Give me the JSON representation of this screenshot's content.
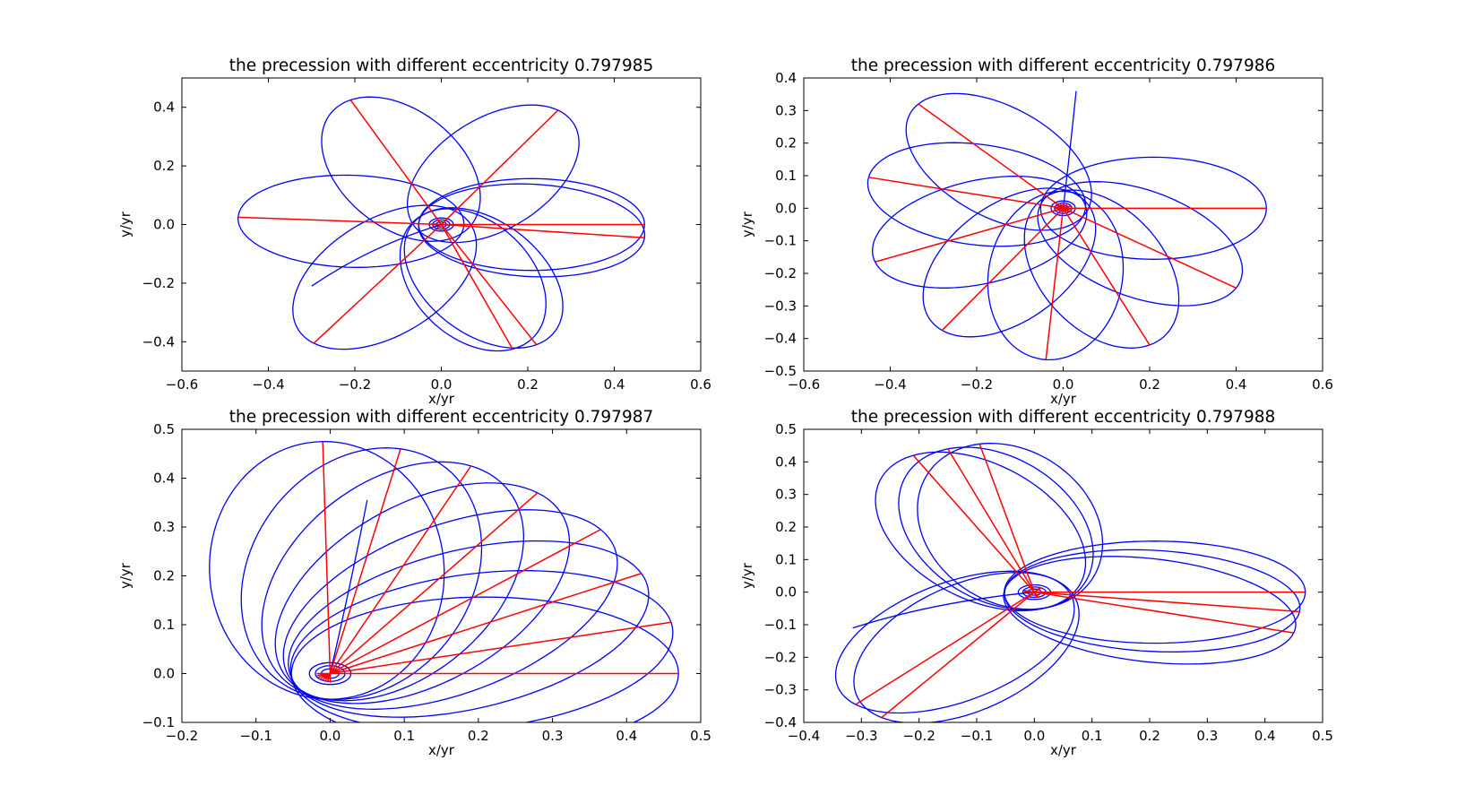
{
  "figure": {
    "background": "#ffffff"
  },
  "chart_data": [
    {
      "type": "line",
      "title": "the precession with different eccentricity 0.797985",
      "xlabel": "x/yr",
      "ylabel": "y/yr",
      "xlim": [
        -0.6,
        0.6
      ],
      "ylim": [
        -0.5,
        0.5
      ],
      "xticks": [
        -0.6,
        -0.4,
        -0.2,
        0.0,
        0.2,
        0.4,
        0.6
      ],
      "xtick_labels": [
        "−0.6",
        "−0.4",
        "−0.2",
        "0.0",
        "0.2",
        "0.4",
        "0.6"
      ],
      "yticks": [
        0.4,
        0.2,
        0.0,
        -0.2,
        -0.4
      ],
      "ytick_labels": [
        "0.4",
        "0.2",
        "0.0",
        "−0.2",
        "−0.4"
      ],
      "grid": false,
      "series": [
        {
          "kind": "orbit",
          "color": "#0000ff",
          "eccentricity": 0.797985,
          "perihelion_radius": 0.0,
          "aphelion_radius": 0.47,
          "apsis_angles_deg": [
            0,
            -5.5,
            -67.2,
            -139.2,
            176.2,
            123.5,
            55.6,
            -113.6
          ],
          "end_point": [
            -0.3,
            -0.21
          ]
        },
        {
          "kind": "major-axis-lines",
          "color": "#ff0000",
          "points": [
            [
              0.47,
              0.0
            ],
            [
              0.47,
              -0.045
            ],
            [
              0.165,
              -0.425
            ],
            [
              0.22,
              -0.41
            ],
            [
              -0.295,
              -0.405
            ],
            [
              -0.47,
              0.025
            ],
            [
              -0.21,
              0.425
            ],
            [
              0.27,
              0.39
            ]
          ]
        }
      ]
    },
    {
      "type": "line",
      "title": "the precession with different eccentricity 0.797986",
      "xlabel": "x/yr",
      "ylabel": "y/yr",
      "xlim": [
        -0.6,
        0.6
      ],
      "ylim": [
        -0.5,
        0.4
      ],
      "xticks": [
        -0.6,
        -0.4,
        -0.2,
        0.0,
        0.2,
        0.4,
        0.6
      ],
      "xtick_labels": [
        "−0.6",
        "−0.4",
        "−0.2",
        "0.0",
        "0.2",
        "0.4",
        "0.6"
      ],
      "yticks": [
        0.4,
        0.3,
        0.2,
        0.1,
        0.0,
        -0.1,
        -0.2,
        -0.3,
        -0.4,
        -0.5
      ],
      "ytick_labels": [
        "0.4",
        "0.3",
        "0.2",
        "0.1",
        "0.0",
        "−0.1",
        "−0.2",
        "−0.3",
        "−0.4",
        "−0.5"
      ],
      "grid": false,
      "series": [
        {
          "kind": "orbit",
          "color": "#0000ff",
          "eccentricity": 0.797986,
          "end_point": [
            0.03,
            0.36
          ]
        },
        {
          "kind": "major-axis-lines",
          "color": "#ff0000",
          "points": [
            [
              0.47,
              0.0
            ],
            [
              0.4,
              -0.245
            ],
            [
              0.2,
              -0.42
            ],
            [
              -0.04,
              -0.465
            ],
            [
              -0.28,
              -0.375
            ],
            [
              -0.435,
              -0.165
            ],
            [
              -0.45,
              0.095
            ],
            [
              -0.335,
              0.32
            ]
          ]
        }
      ]
    },
    {
      "type": "line",
      "title": "the precession with different eccentricity 0.797987",
      "xlabel": "x/yr",
      "ylabel": "y/yr",
      "xlim": [
        -0.2,
        0.5
      ],
      "ylim": [
        -0.1,
        0.5
      ],
      "xticks": [
        -0.2,
        -0.1,
        0.0,
        0.1,
        0.2,
        0.3,
        0.4,
        0.5
      ],
      "xtick_labels": [
        "−0.2",
        "−0.1",
        "0.0",
        "0.1",
        "0.2",
        "0.3",
        "0.4",
        "0.5"
      ],
      "yticks": [
        0.5,
        0.4,
        0.3,
        0.2,
        0.1,
        0.0,
        -0.1
      ],
      "ytick_labels": [
        "0.5",
        "0.4",
        "0.3",
        "0.2",
        "0.1",
        "0.0",
        "−0.1"
      ],
      "grid": false,
      "series": [
        {
          "kind": "orbit",
          "color": "#0000ff",
          "eccentricity": 0.797987,
          "end_point": [
            0.05,
            0.355
          ]
        },
        {
          "kind": "major-axis-lines",
          "color": "#ff0000",
          "points": [
            [
              0.47,
              0.0
            ],
            [
              0.46,
              0.105
            ],
            [
              0.42,
              0.205
            ],
            [
              0.365,
              0.295
            ],
            [
              0.28,
              0.37
            ],
            [
              0.19,
              0.425
            ],
            [
              0.095,
              0.46
            ],
            [
              -0.01,
              0.475
            ]
          ]
        }
      ]
    },
    {
      "type": "line",
      "title": "the precession with different eccentricity 0.797988",
      "xlabel": "x/yr",
      "ylabel": "y/yr",
      "xlim": [
        -0.4,
        0.5
      ],
      "ylim": [
        -0.4,
        0.5
      ],
      "xticks": [
        -0.4,
        -0.3,
        -0.2,
        -0.1,
        0.0,
        0.1,
        0.2,
        0.3,
        0.4,
        0.5
      ],
      "xtick_labels": [
        "−0.4",
        "−0.3",
        "−0.2",
        "−0.1",
        "0.0",
        "0.1",
        "0.2",
        "0.3",
        "0.4",
        "0.5"
      ],
      "yticks": [
        0.5,
        0.4,
        0.3,
        0.2,
        0.1,
        0.0,
        -0.1,
        -0.2,
        -0.3,
        -0.4
      ],
      "ytick_labels": [
        "0.5",
        "0.4",
        "0.3",
        "0.2",
        "0.1",
        "0.0",
        "−0.1",
        "−0.2",
        "−0.3",
        "−0.4"
      ],
      "grid": false,
      "series": [
        {
          "kind": "orbit",
          "color": "#0000ff",
          "eccentricity": 0.797988,
          "end_point": [
            -0.315,
            -0.11
          ]
        },
        {
          "kind": "major-axis-lines",
          "color": "#ff0000",
          "points": [
            [
              0.47,
              0.0
            ],
            [
              0.46,
              -0.06
            ],
            [
              0.45,
              -0.125
            ],
            [
              -0.31,
              -0.345
            ],
            [
              -0.265,
              -0.385
            ],
            [
              -0.21,
              0.42
            ],
            [
              -0.15,
              0.44
            ],
            [
              -0.095,
              0.455
            ]
          ]
        }
      ]
    }
  ]
}
